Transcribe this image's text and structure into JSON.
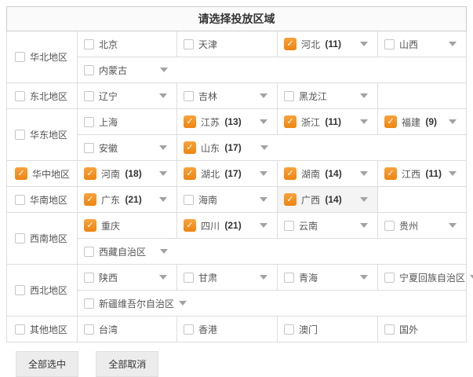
{
  "title": "请选择投放区域",
  "accent_color": "#ee8410",
  "border_color": "#dddddd",
  "groups": [
    {
      "label": "华北地区",
      "checked": false,
      "rows": [
        [
          {
            "label": "北京",
            "checked": false,
            "arrow": false
          },
          {
            "label": "天津",
            "checked": false,
            "arrow": false
          },
          {
            "label": "河北",
            "count": 11,
            "checked": true,
            "arrow": true
          },
          {
            "label": "山西",
            "checked": false,
            "arrow": true
          }
        ],
        [
          {
            "label": "内蒙古",
            "checked": false,
            "arrow": true
          }
        ]
      ]
    },
    {
      "label": "东北地区",
      "checked": false,
      "rows": [
        [
          {
            "label": "辽宁",
            "checked": false,
            "arrow": true
          },
          {
            "label": "吉林",
            "checked": false,
            "arrow": true
          },
          {
            "label": "黑龙江",
            "checked": false,
            "arrow": true
          }
        ]
      ]
    },
    {
      "label": "华东地区",
      "checked": false,
      "rows": [
        [
          {
            "label": "上海",
            "checked": false,
            "arrow": false
          },
          {
            "label": "江苏",
            "count": 13,
            "checked": true,
            "arrow": true
          },
          {
            "label": "浙江",
            "count": 11,
            "checked": true,
            "arrow": true
          },
          {
            "label": "福建",
            "count": 9,
            "checked": true,
            "arrow": true
          }
        ],
        [
          {
            "label": "安徽",
            "checked": false,
            "arrow": true
          },
          {
            "label": "山东",
            "count": 17,
            "checked": true,
            "arrow": true
          }
        ]
      ]
    },
    {
      "label": "华中地区",
      "checked": true,
      "rows": [
        [
          {
            "label": "河南",
            "count": 18,
            "checked": true,
            "arrow": true
          },
          {
            "label": "湖北",
            "count": 17,
            "checked": true,
            "arrow": true
          },
          {
            "label": "湖南",
            "count": 14,
            "checked": true,
            "arrow": true
          },
          {
            "label": "江西",
            "count": 11,
            "checked": true,
            "arrow": true
          }
        ]
      ]
    },
    {
      "label": "华南地区",
      "checked": false,
      "rows": [
        [
          {
            "label": "广东",
            "count": 21,
            "checked": true,
            "arrow": true
          },
          {
            "label": "海南",
            "checked": false,
            "arrow": true
          },
          {
            "label": "广西",
            "count": 14,
            "checked": true,
            "arrow": true,
            "highlight": true
          }
        ]
      ]
    },
    {
      "label": "西南地区",
      "checked": false,
      "rows": [
        [
          {
            "label": "重庆",
            "checked": true,
            "arrow": false
          },
          {
            "label": "四川",
            "count": 21,
            "checked": true,
            "arrow": true
          },
          {
            "label": "云南",
            "checked": false,
            "arrow": true
          },
          {
            "label": "贵州",
            "checked": false,
            "arrow": true
          }
        ],
        [
          {
            "label": "西藏自治区",
            "checked": false,
            "arrow": true
          }
        ]
      ]
    },
    {
      "label": "西北地区",
      "checked": false,
      "rows": [
        [
          {
            "label": "陕西",
            "checked": false,
            "arrow": true
          },
          {
            "label": "甘肃",
            "checked": false,
            "arrow": true
          },
          {
            "label": "青海",
            "checked": false,
            "arrow": true
          },
          {
            "label": "宁夏回族自治区",
            "checked": false,
            "arrow": true
          }
        ],
        [
          {
            "label": "新疆维吾尔自治区",
            "checked": false,
            "arrow": true
          }
        ]
      ]
    },
    {
      "label": "其他地区",
      "checked": false,
      "rows": [
        [
          {
            "label": "台湾",
            "checked": false,
            "arrow": false
          },
          {
            "label": "香港",
            "checked": false,
            "arrow": false
          },
          {
            "label": "澳门",
            "checked": false,
            "arrow": false
          },
          {
            "label": "国外",
            "checked": false,
            "arrow": false
          }
        ]
      ]
    }
  ],
  "footer": {
    "select_all_label": "全部选中",
    "cancel_all_label": "全部取消"
  }
}
